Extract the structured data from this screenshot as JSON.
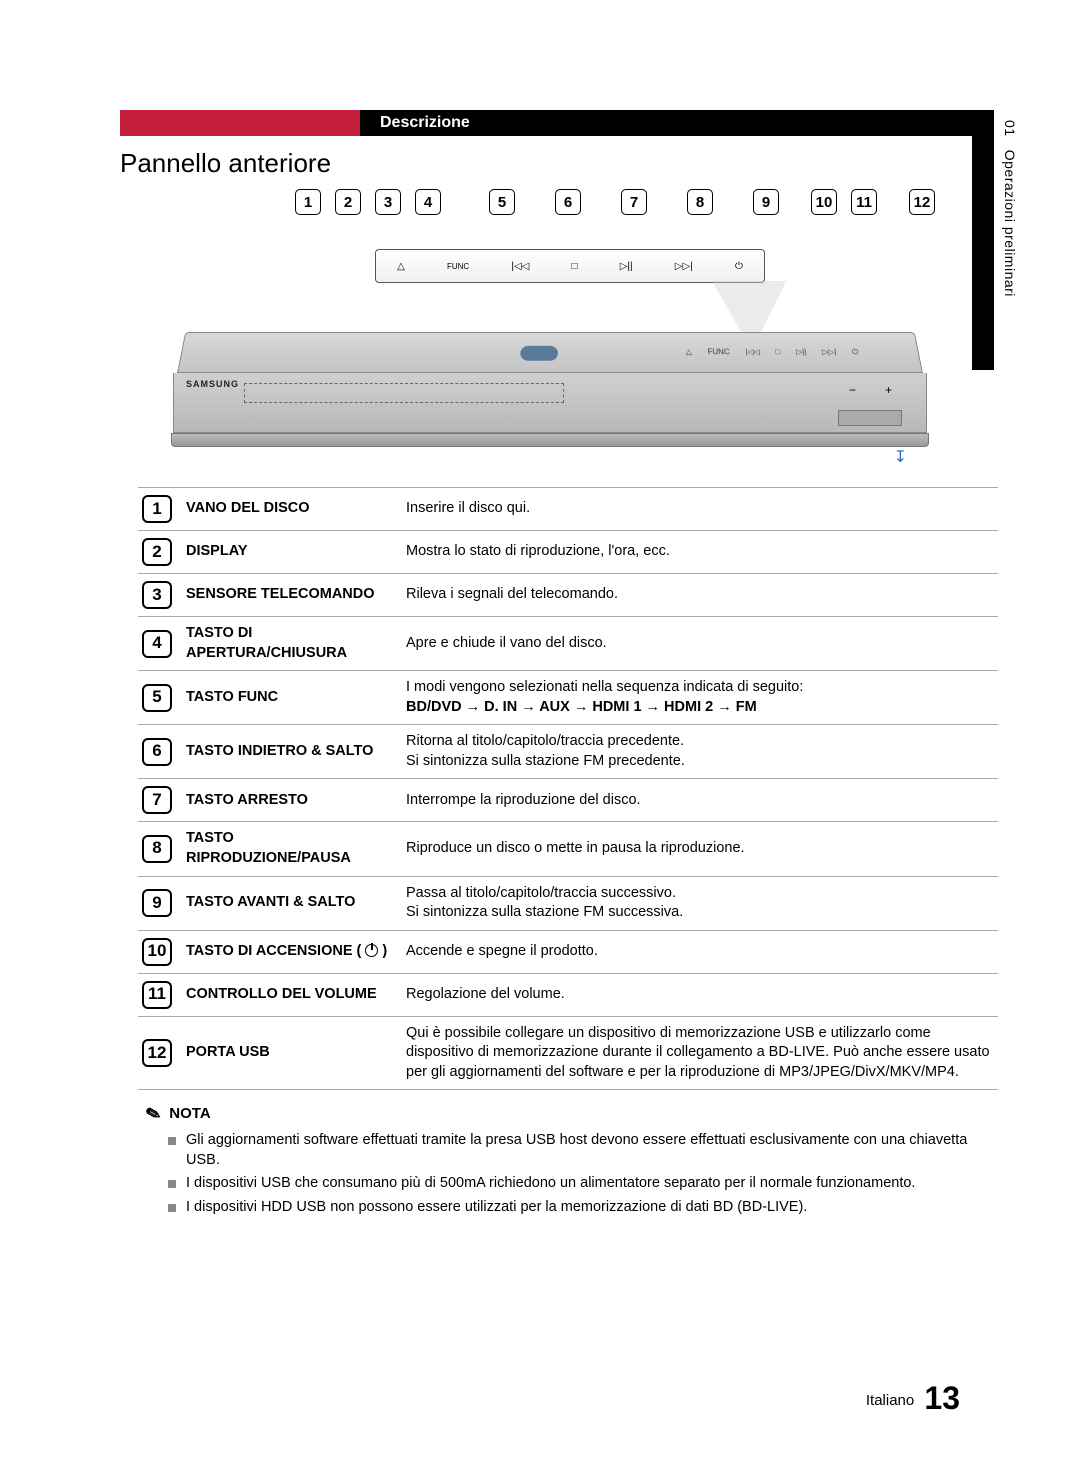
{
  "side": {
    "chapter": "01",
    "label": "Operazioni preliminari"
  },
  "header": {
    "bar_label": "Descrizione",
    "red_color": "#c41e3a"
  },
  "section_title": "Pannello anteriore",
  "callouts": [
    "1",
    "2",
    "3",
    "4",
    "5",
    "6",
    "7",
    "8",
    "9",
    "10",
    "11"
  ],
  "callout_last": "12",
  "panel_icons": {
    "eject": "△",
    "func": "FUNC",
    "prev": "|◁◁",
    "stop": "□",
    "play": "▷||",
    "next": "▷▷|",
    "power": "⏻"
  },
  "device": {
    "brand": "SAMSUNG",
    "vol_minus": "−",
    "vol_plus": "+"
  },
  "rows": [
    {
      "n": "1",
      "label": "VANO DEL DISCO",
      "desc": "Inserire il disco qui."
    },
    {
      "n": "2",
      "label": "DISPLAY",
      "desc": "Mostra lo stato di riproduzione, l'ora, ecc."
    },
    {
      "n": "3",
      "label": "SENSORE TELECOMANDO",
      "desc": "Rileva i segnali del telecomando."
    },
    {
      "n": "4",
      "label": "TASTO DI APERTURA/CHIUSURA",
      "desc": "Apre e chiude il vano del disco."
    },
    {
      "n": "5",
      "label": "TASTO FUNC",
      "desc_pre": "I modi vengono selezionati nella sequenza indicata di seguito:",
      "seq": "BD/DVD → D. IN → AUX → HDMI 1 → HDMI 2 → FM"
    },
    {
      "n": "6",
      "label": "TASTO INDIETRO & SALTO",
      "desc": "Ritorna al titolo/capitolo/traccia precedente.\nSi sintonizza sulla stazione FM precedente."
    },
    {
      "n": "7",
      "label": "TASTO ARRESTO",
      "desc": "Interrompe la riproduzione del disco."
    },
    {
      "n": "8",
      "label": "TASTO RIPRODUZIONE/PAUSA",
      "desc": "Riproduce un disco o mette in pausa la riproduzione."
    },
    {
      "n": "9",
      "label": "TASTO AVANTI & SALTO",
      "desc": "Passa al titolo/capitolo/traccia successivo.\nSi sintonizza sulla stazione FM successiva."
    },
    {
      "n": "10",
      "label": "TASTO DI ACCENSIONE ( ⏻ )",
      "desc": "Accende e spegne il prodotto.",
      "has_power_icon": true
    },
    {
      "n": "11",
      "label": "CONTROLLO DEL VOLUME",
      "desc": "Regolazione del volume."
    },
    {
      "n": "12",
      "label": "PORTA USB",
      "desc": "Qui è possibile collegare un dispositivo di memorizzazione USB e utilizzarlo come dispositivo di memorizzazione durante il collegamento a BD-LIVE. Può anche essere usato per gli aggiornamenti del software e per la riproduzione di MP3/JPEG/DivX/MKV/MP4."
    }
  ],
  "note": {
    "heading": "NOTA",
    "items": [
      "Gli aggiornamenti software effettuati tramite la presa USB host devono essere effettuati esclusivamente con una chiavetta USB.",
      "I dispositivi USB che consumano più di 500mA richiedono un alimentatore separato per il normale funzionamento.",
      "I dispositivi HDD USB non possono essere utilizzati per la memorizzazione di dati BD (BD-LIVE)."
    ]
  },
  "footer": {
    "lang": "Italiano",
    "page": "13"
  },
  "colors": {
    "black": "#000000",
    "red": "#c41e3a",
    "grid": "#aaaaaa",
    "bullet": "#888888",
    "arrow_blue": "#3366cc"
  }
}
